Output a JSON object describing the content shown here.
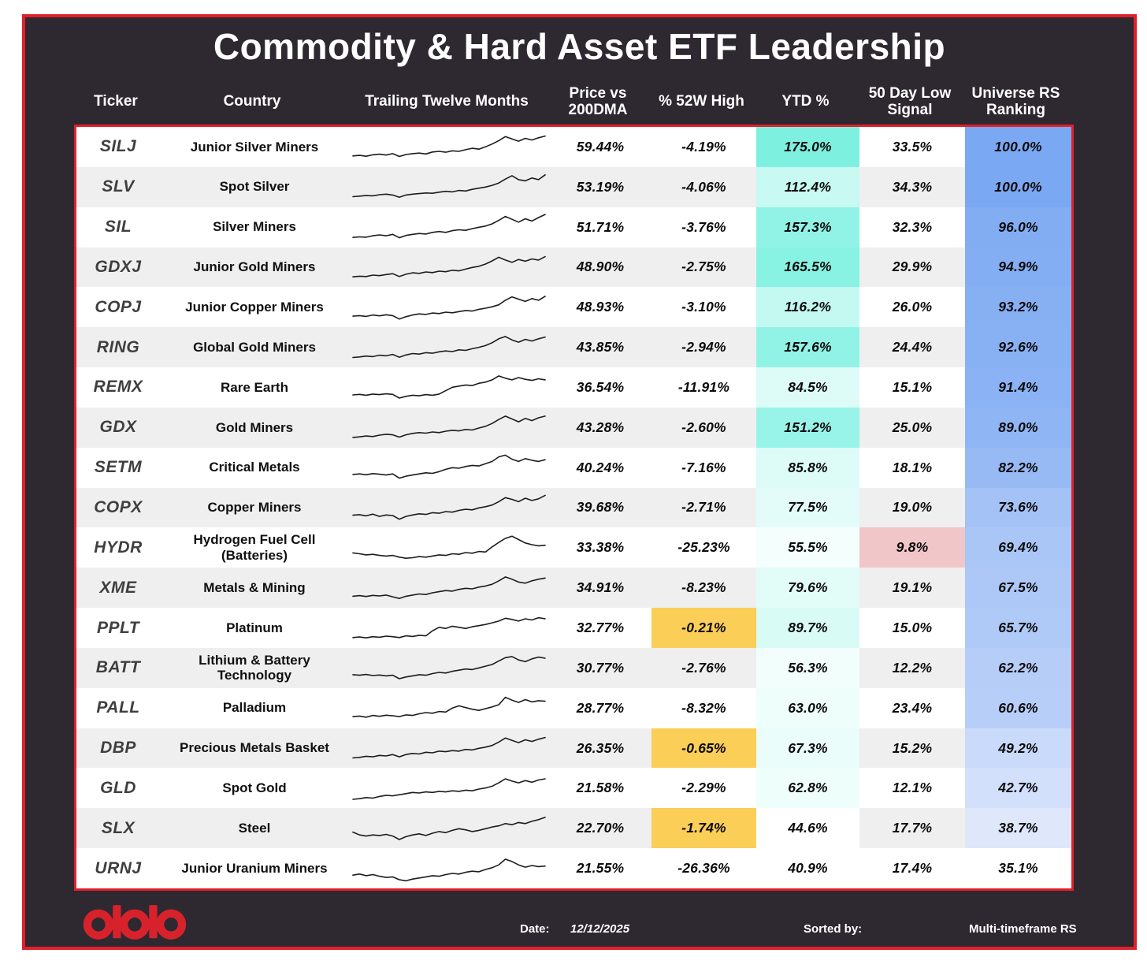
{
  "title": "Commodity & Hard Asset ETF Leadership",
  "colors": {
    "page_background": "#ffffff",
    "card_background": "#2e2831",
    "frame_red": "#e0202a",
    "logo_red": "#d7222c",
    "row_alt": "#efefef",
    "ticker_text": "#3f3f3f",
    "number_text": "#0b0b0b",
    "header_text": "#ffffff",
    "orange_flag": "#fbce57",
    "pink_flag": "#f0c6c8",
    "ytd_scale_max": "#7df0e0",
    "rs_scale_max": "#7aa8f2",
    "sparkline": "#1c1c1c"
  },
  "chart_data": {
    "type": "table",
    "title": "Commodity & Hard Asset ETF Leadership",
    "columns": [
      "Ticker",
      "Country",
      "Trailing Twelve Months",
      "Price vs 200DMA",
      "% 52W High",
      "YTD %",
      "50 Day Low Signal",
      "Universe RS Ranking"
    ],
    "sparkline_note": "Trailing-twelve-month price sparklines, values normalized 0-1",
    "rows": [
      {
        "ticker": "SILJ",
        "name": "Junior Silver Miners",
        "price_vs_200dma": "59.44%",
        "pct_52w_high": "-4.19%",
        "p52_flag": false,
        "ytd": "175.0%",
        "ytd_bg": "#7df0e0",
        "signal": "33.5%",
        "signal_flag": false,
        "rs": "100.0%",
        "rs_bg": "#7aa8f2",
        "spark": [
          0.2,
          0.22,
          0.19,
          0.24,
          0.26,
          0.23,
          0.28,
          0.18,
          0.25,
          0.28,
          0.3,
          0.27,
          0.34,
          0.36,
          0.33,
          0.38,
          0.36,
          0.42,
          0.47,
          0.44,
          0.52,
          0.62,
          0.74,
          0.88,
          0.8,
          0.72,
          0.82,
          0.76,
          0.84,
          0.9
        ]
      },
      {
        "ticker": "SLV",
        "name": "Spot Silver",
        "price_vs_200dma": "53.19%",
        "pct_52w_high": "-4.06%",
        "p52_flag": false,
        "ytd": "112.4%",
        "ytd_bg": "#c8f9f2",
        "signal": "34.3%",
        "signal_flag": false,
        "rs": "100.0%",
        "rs_bg": "#7aa8f2",
        "spark": [
          0.18,
          0.2,
          0.22,
          0.21,
          0.25,
          0.27,
          0.24,
          0.16,
          0.24,
          0.27,
          0.29,
          0.31,
          0.3,
          0.34,
          0.37,
          0.35,
          0.4,
          0.38,
          0.44,
          0.48,
          0.52,
          0.58,
          0.66,
          0.8,
          0.92,
          0.78,
          0.74,
          0.84,
          0.78,
          0.95
        ]
      },
      {
        "ticker": "SIL",
        "name": "Silver Miners",
        "price_vs_200dma": "51.71%",
        "pct_52w_high": "-3.76%",
        "p52_flag": false,
        "ytd": "157.3%",
        "ytd_bg": "#90f3e6",
        "signal": "32.3%",
        "signal_flag": false,
        "rs": "96.0%",
        "rs_bg": "#82adf3",
        "spark": [
          0.16,
          0.18,
          0.17,
          0.22,
          0.25,
          0.22,
          0.27,
          0.15,
          0.23,
          0.27,
          0.3,
          0.28,
          0.34,
          0.37,
          0.34,
          0.4,
          0.43,
          0.41,
          0.47,
          0.52,
          0.56,
          0.64,
          0.76,
          0.9,
          0.8,
          0.7,
          0.82,
          0.74,
          0.86,
          0.97
        ]
      },
      {
        "ticker": "GDXJ",
        "name": "Junior Gold Miners",
        "price_vs_200dma": "48.90%",
        "pct_52w_high": "-2.75%",
        "p52_flag": false,
        "ytd": "165.5%",
        "ytd_bg": "#88f2e3",
        "signal": "29.9%",
        "signal_flag": false,
        "rs": "94.9%",
        "rs_bg": "#84aef3",
        "spark": [
          0.19,
          0.21,
          0.2,
          0.25,
          0.23,
          0.27,
          0.3,
          0.2,
          0.28,
          0.33,
          0.31,
          0.36,
          0.34,
          0.39,
          0.37,
          0.42,
          0.4,
          0.46,
          0.52,
          0.56,
          0.64,
          0.75,
          0.88,
          0.78,
          0.7,
          0.8,
          0.74,
          0.82,
          0.78,
          0.9
        ]
      },
      {
        "ticker": "COPJ",
        "name": "Junior Copper Miners",
        "price_vs_200dma": "48.93%",
        "pct_52w_high": "-3.10%",
        "p52_flag": false,
        "ytd": "116.2%",
        "ytd_bg": "#c4f9f1",
        "signal": "26.0%",
        "signal_flag": false,
        "rs": "93.2%",
        "rs_bg": "#87b0f3",
        "spark": [
          0.22,
          0.24,
          0.21,
          0.26,
          0.23,
          0.27,
          0.24,
          0.12,
          0.2,
          0.26,
          0.3,
          0.28,
          0.33,
          0.31,
          0.36,
          0.34,
          0.38,
          0.42,
          0.4,
          0.46,
          0.5,
          0.55,
          0.62,
          0.78,
          0.9,
          0.82,
          0.74,
          0.84,
          0.78,
          0.92
        ]
      },
      {
        "ticker": "RING",
        "name": "Global Gold Miners",
        "price_vs_200dma": "43.85%",
        "pct_52w_high": "-2.94%",
        "p52_flag": false,
        "ytd": "157.6%",
        "ytd_bg": "#90f3e6",
        "signal": "24.4%",
        "signal_flag": false,
        "rs": "92.6%",
        "rs_bg": "#88b1f4",
        "spark": [
          0.18,
          0.2,
          0.23,
          0.21,
          0.26,
          0.24,
          0.29,
          0.19,
          0.27,
          0.32,
          0.3,
          0.35,
          0.33,
          0.38,
          0.41,
          0.39,
          0.45,
          0.43,
          0.49,
          0.54,
          0.6,
          0.7,
          0.84,
          0.92,
          0.8,
          0.72,
          0.82,
          0.76,
          0.84,
          0.9
        ]
      },
      {
        "ticker": "REMX",
        "name": "Rare Earth",
        "price_vs_200dma": "36.54%",
        "pct_52w_high": "-11.91%",
        "p52_flag": false,
        "ytd": "84.5%",
        "ytd_bg": "#defcf7",
        "signal": "15.1%",
        "signal_flag": false,
        "rs": "91.4%",
        "rs_bg": "#8ab2f4",
        "spark": [
          0.25,
          0.27,
          0.24,
          0.28,
          0.26,
          0.29,
          0.27,
          0.14,
          0.2,
          0.24,
          0.22,
          0.26,
          0.24,
          0.28,
          0.4,
          0.52,
          0.56,
          0.6,
          0.58,
          0.66,
          0.7,
          0.78,
          0.92,
          0.84,
          0.78,
          0.86,
          0.8,
          0.76,
          0.82,
          0.78
        ]
      },
      {
        "ticker": "GDX",
        "name": "Gold Miners",
        "price_vs_200dma": "43.28%",
        "pct_52w_high": "-2.60%",
        "p52_flag": false,
        "ytd": "151.2%",
        "ytd_bg": "#98f4e8",
        "signal": "25.0%",
        "signal_flag": false,
        "rs": "89.0%",
        "rs_bg": "#8fb5f4",
        "spark": [
          0.17,
          0.19,
          0.22,
          0.2,
          0.25,
          0.28,
          0.26,
          0.18,
          0.26,
          0.31,
          0.34,
          0.32,
          0.36,
          0.34,
          0.39,
          0.42,
          0.4,
          0.45,
          0.43,
          0.5,
          0.56,
          0.66,
          0.8,
          0.92,
          0.82,
          0.72,
          0.84,
          0.76,
          0.86,
          0.92
        ]
      },
      {
        "ticker": "SETM",
        "name": "Critical Metals",
        "price_vs_200dma": "40.24%",
        "pct_52w_high": "-7.16%",
        "p52_flag": false,
        "ytd": "85.8%",
        "ytd_bg": "#ddfcf7",
        "signal": "18.1%",
        "signal_flag": false,
        "rs": "82.2%",
        "rs_bg": "#97baf5",
        "spark": [
          0.28,
          0.3,
          0.27,
          0.31,
          0.29,
          0.26,
          0.3,
          0.15,
          0.22,
          0.26,
          0.3,
          0.34,
          0.32,
          0.38,
          0.46,
          0.52,
          0.5,
          0.56,
          0.6,
          0.58,
          0.66,
          0.74,
          0.9,
          0.96,
          0.82,
          0.74,
          0.84,
          0.78,
          0.74,
          0.8
        ]
      },
      {
        "ticker": "COPX",
        "name": "Copper Miners",
        "price_vs_200dma": "39.68%",
        "pct_52w_high": "-2.71%",
        "p52_flag": false,
        "ytd": "77.5%",
        "ytd_bg": "#e4fcf9",
        "signal": "19.0%",
        "signal_flag": false,
        "rs": "73.6%",
        "rs_bg": "#a5c2f6",
        "spark": [
          0.26,
          0.28,
          0.24,
          0.3,
          0.22,
          0.27,
          0.25,
          0.12,
          0.22,
          0.27,
          0.31,
          0.29,
          0.35,
          0.33,
          0.39,
          0.37,
          0.43,
          0.47,
          0.45,
          0.52,
          0.56,
          0.62,
          0.74,
          0.88,
          0.82,
          0.74,
          0.86,
          0.78,
          0.84,
          0.96
        ]
      },
      {
        "ticker": "HYDR",
        "name": "Hydrogen Fuel Cell (Batteries)",
        "price_vs_200dma": "33.38%",
        "pct_52w_high": "-25.23%",
        "p52_flag": false,
        "ytd": "55.5%",
        "ytd_bg": "#f3fefd",
        "signal": "9.8%",
        "signal_flag": true,
        "rs": "69.4%",
        "rs_bg": "#aac6f6",
        "spark": [
          0.35,
          0.32,
          0.28,
          0.3,
          0.26,
          0.24,
          0.26,
          0.2,
          0.16,
          0.18,
          0.22,
          0.2,
          0.24,
          0.28,
          0.26,
          0.32,
          0.3,
          0.36,
          0.34,
          0.4,
          0.38,
          0.56,
          0.72,
          0.86,
          0.94,
          0.82,
          0.7,
          0.64,
          0.6,
          0.62
        ]
      },
      {
        "ticker": "XME",
        "name": "Metals & Mining",
        "price_vs_200dma": "34.91%",
        "pct_52w_high": "-8.23%",
        "p52_flag": false,
        "ytd": "79.6%",
        "ytd_bg": "#e2fcf8",
        "signal": "19.1%",
        "signal_flag": false,
        "rs": "67.5%",
        "rs_bg": "#adc8f7",
        "spark": [
          0.24,
          0.26,
          0.23,
          0.27,
          0.25,
          0.28,
          0.22,
          0.16,
          0.24,
          0.28,
          0.32,
          0.3,
          0.36,
          0.4,
          0.44,
          0.42,
          0.48,
          0.52,
          0.5,
          0.56,
          0.6,
          0.66,
          0.78,
          0.92,
          0.84,
          0.74,
          0.7,
          0.78,
          0.84,
          0.88
        ]
      },
      {
        "ticker": "PPLT",
        "name": "Platinum",
        "price_vs_200dma": "32.77%",
        "pct_52w_high": "-0.21%",
        "p52_flag": true,
        "ytd": "89.7%",
        "ytd_bg": "#d9fbf6",
        "signal": "15.0%",
        "signal_flag": false,
        "rs": "65.7%",
        "rs_bg": "#b0caf7",
        "spark": [
          0.2,
          0.22,
          0.19,
          0.23,
          0.21,
          0.25,
          0.23,
          0.2,
          0.26,
          0.24,
          0.28,
          0.26,
          0.44,
          0.56,
          0.52,
          0.6,
          0.56,
          0.52,
          0.58,
          0.62,
          0.66,
          0.72,
          0.78,
          0.88,
          0.84,
          0.78,
          0.86,
          0.82,
          0.9,
          0.86
        ]
      },
      {
        "ticker": "BATT",
        "name": "Lithium & Battery Technology",
        "price_vs_200dma": "30.77%",
        "pct_52w_high": "-2.76%",
        "p52_flag": false,
        "ytd": "56.3%",
        "ytd_bg": "#f2fefc",
        "signal": "12.2%",
        "signal_flag": false,
        "rs": "62.2%",
        "rs_bg": "#b5cdf7",
        "spark": [
          0.28,
          0.26,
          0.29,
          0.25,
          0.27,
          0.24,
          0.26,
          0.14,
          0.2,
          0.24,
          0.28,
          0.26,
          0.32,
          0.36,
          0.34,
          0.4,
          0.44,
          0.48,
          0.46,
          0.52,
          0.58,
          0.64,
          0.76,
          0.88,
          0.92,
          0.8,
          0.74,
          0.84,
          0.9,
          0.86
        ]
      },
      {
        "ticker": "PALL",
        "name": "Palladium",
        "price_vs_200dma": "28.77%",
        "pct_52w_high": "-8.32%",
        "p52_flag": false,
        "ytd": "63.0%",
        "ytd_bg": "#eefefb",
        "signal": "23.4%",
        "signal_flag": false,
        "rs": "60.6%",
        "rs_bg": "#b7cef8",
        "spark": [
          0.22,
          0.24,
          0.2,
          0.26,
          0.23,
          0.27,
          0.25,
          0.22,
          0.28,
          0.26,
          0.32,
          0.36,
          0.34,
          0.4,
          0.38,
          0.52,
          0.6,
          0.54,
          0.48,
          0.44,
          0.5,
          0.56,
          0.64,
          0.9,
          0.8,
          0.72,
          0.82,
          0.74,
          0.78,
          0.76
        ]
      },
      {
        "ticker": "DBP",
        "name": "Precious Metals Basket",
        "price_vs_200dma": "26.35%",
        "pct_52w_high": "-0.65%",
        "p52_flag": true,
        "ytd": "67.3%",
        "ytd_bg": "#ebfdfb",
        "signal": "15.2%",
        "signal_flag": false,
        "rs": "49.2%",
        "rs_bg": "#c9dafa",
        "spark": [
          0.18,
          0.2,
          0.24,
          0.22,
          0.27,
          0.25,
          0.3,
          0.22,
          0.3,
          0.34,
          0.32,
          0.38,
          0.36,
          0.42,
          0.4,
          0.44,
          0.42,
          0.48,
          0.46,
          0.52,
          0.56,
          0.62,
          0.74,
          0.88,
          0.8,
          0.72,
          0.82,
          0.76,
          0.84,
          0.9
        ]
      },
      {
        "ticker": "GLD",
        "name": "Spot Gold",
        "price_vs_200dma": "21.58%",
        "pct_52w_high": "-2.29%",
        "p52_flag": false,
        "ytd": "62.8%",
        "ytd_bg": "#eefefb",
        "signal": "12.1%",
        "signal_flag": false,
        "rs": "42.7%",
        "rs_bg": "#d3e0fb",
        "spark": [
          0.14,
          0.16,
          0.2,
          0.18,
          0.24,
          0.28,
          0.26,
          0.3,
          0.34,
          0.38,
          0.36,
          0.4,
          0.38,
          0.42,
          0.4,
          0.44,
          0.42,
          0.46,
          0.44,
          0.5,
          0.54,
          0.6,
          0.72,
          0.86,
          0.78,
          0.72,
          0.8,
          0.74,
          0.82,
          0.86
        ]
      },
      {
        "ticker": "SLX",
        "name": "Steel",
        "price_vs_200dma": "22.70%",
        "pct_52w_high": "-1.74%",
        "p52_flag": true,
        "ytd": "44.6%",
        "ytd_bg": "#ffffff",
        "signal": "17.7%",
        "signal_flag": false,
        "rs": "38.7%",
        "rs_bg": "#dfe7fb",
        "spark": [
          0.4,
          0.3,
          0.26,
          0.3,
          0.28,
          0.32,
          0.26,
          0.14,
          0.24,
          0.3,
          0.34,
          0.28,
          0.36,
          0.42,
          0.38,
          0.46,
          0.52,
          0.48,
          0.42,
          0.46,
          0.52,
          0.58,
          0.62,
          0.7,
          0.66,
          0.74,
          0.7,
          0.78,
          0.84,
          0.92
        ]
      },
      {
        "ticker": "URNJ",
        "name": "Junior Uranium Miners",
        "price_vs_200dma": "21.55%",
        "pct_52w_high": "-26.36%",
        "p52_flag": false,
        "ytd": "40.9%",
        "ytd_bg": "#ffffff",
        "signal": "17.4%",
        "signal_flag": false,
        "rs": "35.1%",
        "rs_bg": "#ffffff",
        "spark": [
          0.3,
          0.34,
          0.28,
          0.32,
          0.26,
          0.22,
          0.24,
          0.14,
          0.1,
          0.16,
          0.2,
          0.24,
          0.28,
          0.26,
          0.32,
          0.36,
          0.34,
          0.4,
          0.44,
          0.42,
          0.5,
          0.56,
          0.66,
          0.86,
          0.78,
          0.66,
          0.58,
          0.64,
          0.6,
          0.62
        ]
      }
    ]
  },
  "footer": {
    "logo": "three-red-rings-logo",
    "date_label": "Date:",
    "date_value": "12/12/2025",
    "sorted_label": "Sorted by:",
    "sorted_value": "Multi-timeframe RS"
  }
}
